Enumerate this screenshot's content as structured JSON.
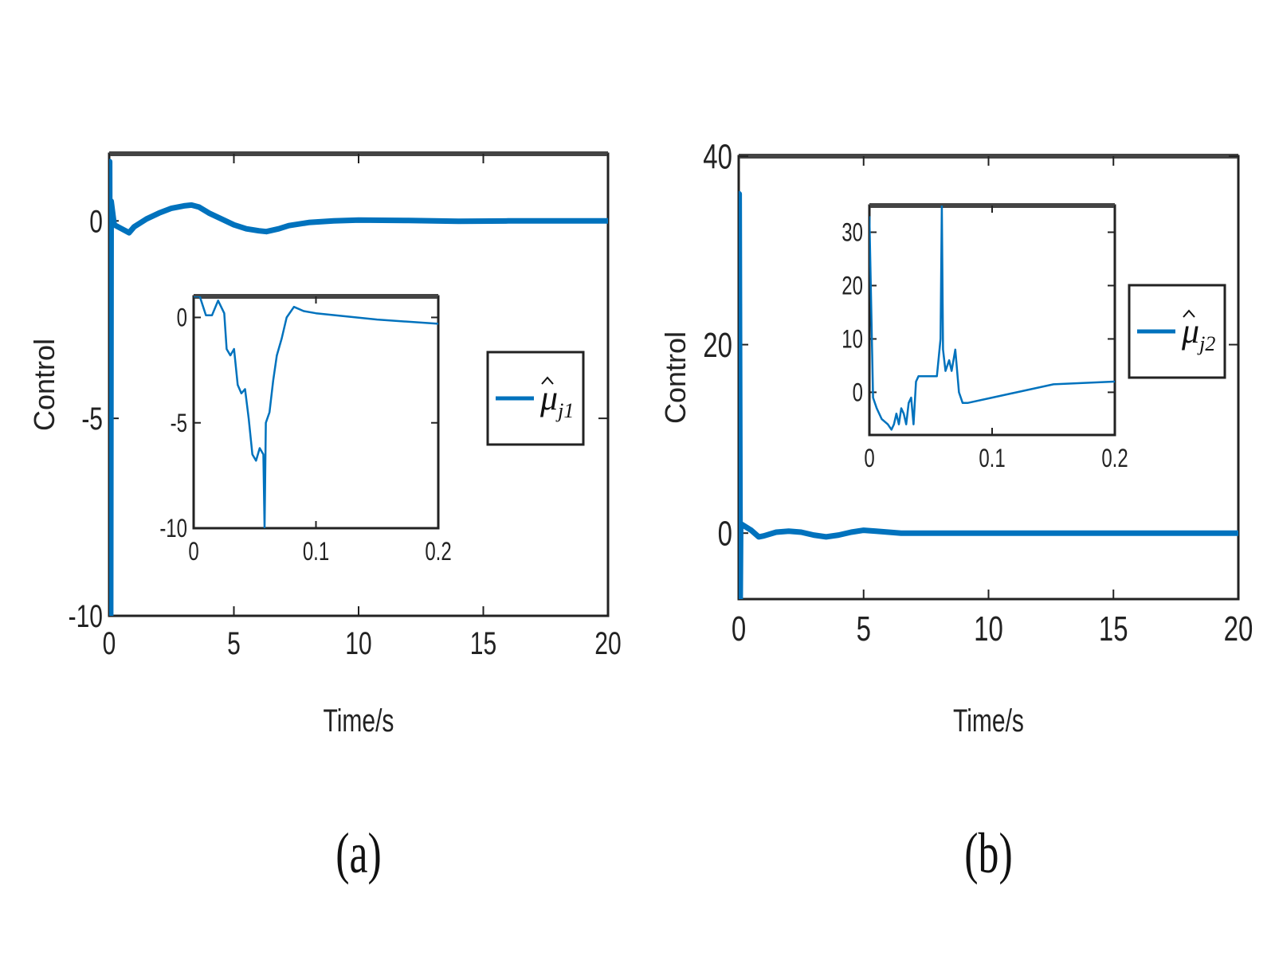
{
  "chart_data": [
    {
      "type": "line",
      "panel_label": "(a)",
      "xlabel": "Time/s",
      "ylabel": "Control",
      "xlim": [
        0,
        20
      ],
      "ylim": [
        -10,
        1.7
      ],
      "xticks": [
        "0",
        "5",
        "10",
        "15",
        "20"
      ],
      "yticks": [
        "-10",
        "-5",
        "0"
      ],
      "ytick_values": [
        -10,
        -5,
        0
      ],
      "legend": {
        "base": "μ",
        "sub": "j1",
        "placement": "right"
      },
      "color": "#0072BD",
      "series": [
        {
          "x": [
            0,
            0.02,
            0.06,
            0.08,
            0.2,
            0.5,
            0.8,
            1.0,
            1.5,
            2.0,
            2.5,
            3.0,
            3.3,
            3.6,
            4.0,
            4.5,
            5.0,
            5.5,
            6.0,
            6.3,
            6.8,
            7.2,
            8.0,
            9.0,
            10.0,
            12.0,
            14.0,
            16.0,
            18.0,
            20.0
          ],
          "y": [
            0,
            1.5,
            -10,
            0.5,
            -0.1,
            -0.2,
            -0.3,
            -0.15,
            0.05,
            0.2,
            0.32,
            0.38,
            0.4,
            0.35,
            0.2,
            0.05,
            -0.1,
            -0.2,
            -0.25,
            -0.27,
            -0.2,
            -0.12,
            -0.04,
            0.0,
            0.02,
            0.01,
            -0.01,
            0.0,
            0.0,
            0.0
          ]
        }
      ],
      "inset": {
        "xlim": [
          0,
          0.2
        ],
        "ylim": [
          -10,
          1
        ],
        "xticks": [
          "0",
          "0.1",
          "0.2"
        ],
        "yticks": [
          "-10",
          "-5",
          "0"
        ],
        "ytick_values": [
          -10,
          -5,
          0
        ],
        "x": [
          0,
          0.005,
          0.01,
          0.015,
          0.02,
          0.025,
          0.027,
          0.03,
          0.033,
          0.036,
          0.039,
          0.042,
          0.045,
          0.048,
          0.051,
          0.054,
          0.057,
          0.058,
          0.059,
          0.062,
          0.065,
          0.068,
          0.072,
          0.076,
          0.082,
          0.09,
          0.1,
          0.15,
          0.2
        ],
        "y": [
          1,
          1,
          0.1,
          0.1,
          0.8,
          0.2,
          -1.5,
          -1.8,
          -1.5,
          -3.2,
          -3.6,
          -3.4,
          -4.8,
          -6.5,
          -6.8,
          -6.2,
          -6.5,
          -10,
          -5,
          -4.5,
          -3,
          -1.8,
          -1.0,
          0.0,
          0.5,
          0.3,
          0.2,
          -0.1,
          -0.3
        ]
      }
    },
    {
      "type": "line",
      "panel_label": "(b)",
      "xlabel": "Time/s",
      "ylabel": "Control",
      "xlim": [
        0,
        20
      ],
      "ylim": [
        -7,
        40
      ],
      "xticks": [
        "0",
        "5",
        "10",
        "15",
        "20"
      ],
      "yticks": [
        "0",
        "20",
        "40"
      ],
      "ytick_values": [
        0,
        20,
        40
      ],
      "legend": {
        "base": "μ",
        "sub": "j2",
        "placement": "right"
      },
      "color": "#0072BD",
      "series": [
        {
          "x": [
            0,
            0.02,
            0.06,
            0.08,
            0.2,
            0.5,
            0.8,
            1.0,
            1.5,
            2.0,
            2.5,
            3.0,
            3.5,
            4.0,
            4.5,
            5.0,
            5.5,
            6.0,
            6.5,
            7.0,
            8.0,
            9.0,
            10.0,
            12.0,
            14.0,
            16.0,
            18.0,
            20.0
          ],
          "y": [
            0,
            36,
            -7,
            1,
            0.8,
            0.3,
            -0.4,
            -0.3,
            0.1,
            0.2,
            0.1,
            -0.2,
            -0.4,
            -0.2,
            0.1,
            0.3,
            0.2,
            0.1,
            0.0,
            0.0,
            0.0,
            0.0,
            0.0,
            0.0,
            0.0,
            0.0,
            0.0,
            0.0
          ]
        }
      ],
      "inset": {
        "xlim": [
          0,
          0.2
        ],
        "ylim": [
          -8,
          35
        ],
        "xticks": [
          "0",
          "0.1",
          "0.2"
        ],
        "yticks": [
          "0",
          "10",
          "20",
          "30"
        ],
        "ytick_values": [
          0,
          10,
          20,
          30
        ],
        "x": [
          0,
          0.003,
          0.006,
          0.01,
          0.015,
          0.018,
          0.02,
          0.022,
          0.024,
          0.026,
          0.028,
          0.03,
          0.032,
          0.034,
          0.036,
          0.038,
          0.04,
          0.042,
          0.044,
          0.046,
          0.05,
          0.055,
          0.058,
          0.059,
          0.06,
          0.062,
          0.065,
          0.067,
          0.07,
          0.073,
          0.076,
          0.08,
          0.1,
          0.15,
          0.2
        ],
        "y": [
          33,
          -1,
          -3,
          -5,
          -6,
          -7,
          -6,
          -4,
          -6,
          -3,
          -4,
          -6,
          -2,
          -1,
          -6,
          2,
          3,
          3,
          3,
          3,
          3,
          3,
          10,
          35,
          8,
          4,
          6,
          4,
          8,
          0,
          -2,
          -2,
          -1,
          1.5,
          2
        ]
      }
    }
  ]
}
